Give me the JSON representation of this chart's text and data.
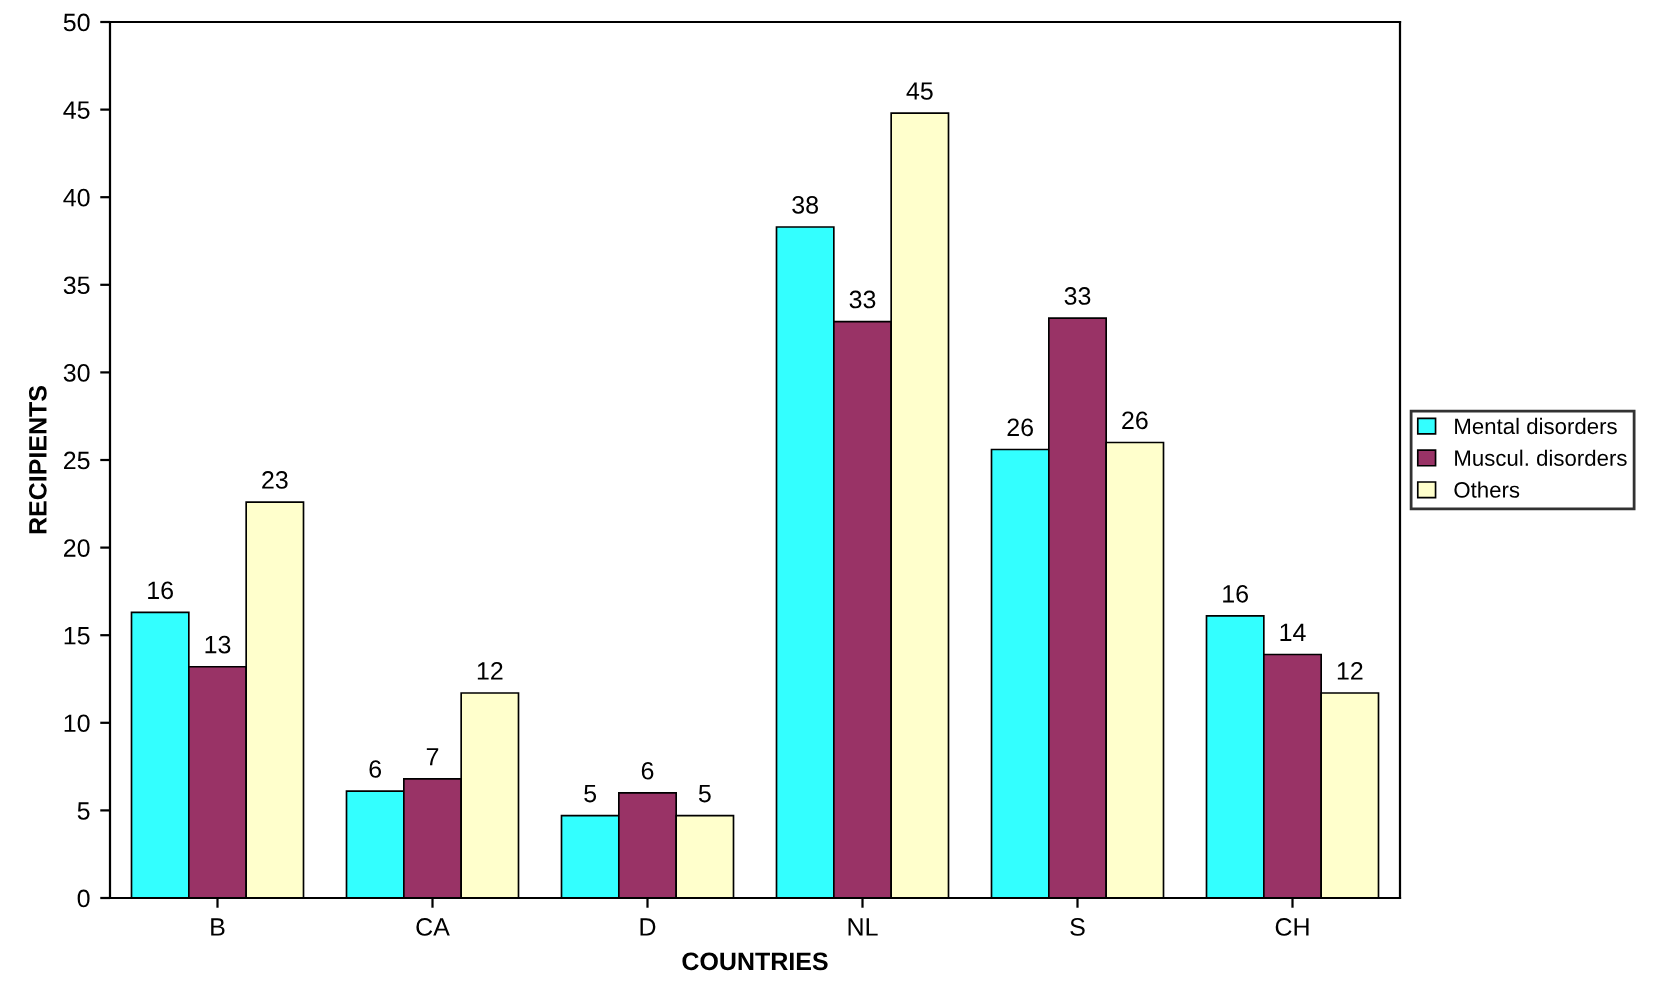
{
  "chart_data": {
    "type": "bar",
    "xlabel": "COUNTRIES",
    "ylabel": "RECIPIENTS",
    "categories": [
      "B",
      "CA",
      "D",
      "NL",
      "S",
      "CH"
    ],
    "series": [
      {
        "name": "Mental disorders",
        "color": "#33ffff",
        "values": [
          16.3,
          6.1,
          4.7,
          38.3,
          25.6,
          16.1
        ],
        "value_labels": [
          "16",
          "6",
          "5",
          "38",
          "26",
          "16"
        ]
      },
      {
        "name": "Muscul. disorders",
        "color": "#993366",
        "values": [
          13.2,
          6.8,
          6.0,
          32.9,
          33.1,
          13.9
        ],
        "value_labels": [
          "13",
          "7",
          "6",
          "33",
          "33",
          "14"
        ]
      },
      {
        "name": "Others",
        "color": "#ffffcc",
        "values": [
          22.6,
          11.7,
          4.7,
          44.8,
          26.0,
          11.7
        ],
        "value_labels": [
          "23",
          "12",
          "5",
          "45",
          "26",
          "12"
        ]
      }
    ],
    "ylim": [
      0,
      50
    ],
    "yticks": [
      0,
      5,
      10,
      15,
      20,
      25,
      30,
      35,
      40,
      45,
      50
    ],
    "grid": false,
    "legend": "right"
  }
}
